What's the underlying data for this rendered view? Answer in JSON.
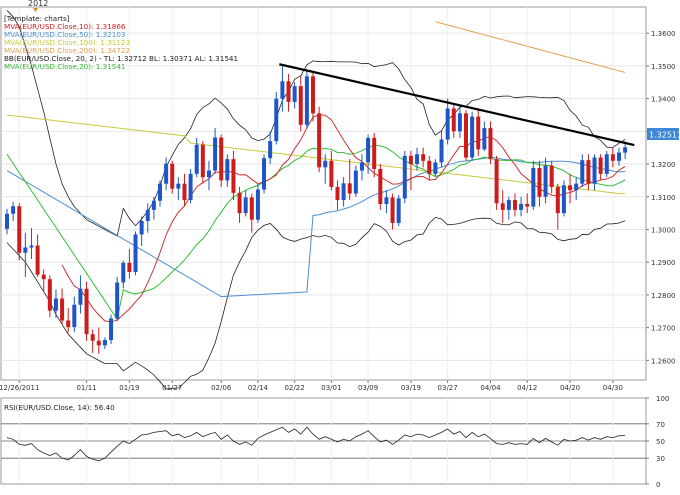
{
  "year_marker": "2012",
  "template_label": "[Template: charts]",
  "chart_data": {
    "type": "candlestick",
    "main_panel": {
      "indicators": [
        {
          "text": "MVA(EUR/USD.Close,10): 1.31866",
          "color": "#cc2020"
        },
        {
          "text": "MVA(EUR/USD.Close,50): 1.32103",
          "color": "#4b8fd1"
        },
        {
          "text": "MVA(EUR/USD.Close,100): 1.31123",
          "color": "#c9c93a"
        },
        {
          "text": "MVA(EUR/USD.Close,200): 1.34722",
          "color": "#e0a050"
        },
        {
          "text": "BB(EUR/USD.Close, 20, 2) -  TL: 1.32712  BL: 1.30371  AL: 1.31541",
          "color": "#222222"
        },
        {
          "text": "MVA(EUR/USD.Close,20): 1.31541",
          "color": "#33bb33"
        }
      ],
      "ylim": [
        1.254,
        1.368
      ],
      "yticks": [
        "1.2600",
        "1.2700",
        "1.2800",
        "1.2900",
        "1.3000",
        "1.3100",
        "1.3200",
        "1.3300",
        "1.3400",
        "1.3500",
        "1.3600"
      ],
      "last_price_label": "1.32511",
      "colors": {
        "up": "#1e56c8",
        "down": "#cc1c1c",
        "ma10": "#cc3333",
        "ma50": "#4b8fd1",
        "ma100": "#c9c93a",
        "ma200": "#e0a050",
        "ma20": "#33bb33",
        "bb": "#222222",
        "trendline": "#000000",
        "price_tag": "#3d88d8"
      },
      "trendline": [
        [
          44.5,
          1.3505
        ],
        [
          102.5,
          1.3258
        ]
      ],
      "ohlc": [
        [
          1.3002,
          1.3063,
          1.2985,
          1.3048
        ],
        [
          1.3048,
          1.3085,
          1.3026,
          1.3071
        ],
        [
          1.3071,
          1.308,
          1.2905,
          1.2929
        ],
        [
          1.2929,
          1.299,
          1.2855,
          1.2945
        ],
        [
          1.2945,
          1.3004,
          1.291,
          1.2951
        ],
        [
          1.2951,
          1.2985,
          1.2855,
          1.2862
        ],
        [
          1.2862,
          1.2878,
          1.281,
          1.2848
        ],
        [
          1.2848,
          1.286,
          1.2732,
          1.2752
        ],
        [
          1.2752,
          1.2817,
          1.273,
          1.2789
        ],
        [
          1.2789,
          1.282,
          1.271,
          1.2722
        ],
        [
          1.2722,
          1.276,
          1.2685,
          1.2702
        ],
        [
          1.2702,
          1.2795,
          1.2686,
          1.277
        ],
        [
          1.277,
          1.286,
          1.2743,
          1.2819
        ],
        [
          1.2819,
          1.284,
          1.266,
          1.268
        ],
        [
          1.268,
          1.2694,
          1.2623,
          1.266
        ],
        [
          1.266,
          1.27,
          1.262,
          1.2646
        ],
        [
          1.2646,
          1.267,
          1.2635,
          1.2662
        ],
        [
          1.2662,
          1.274,
          1.265,
          1.2728
        ],
        [
          1.2728,
          1.2855,
          1.272,
          1.2838
        ],
        [
          1.2838,
          1.2905,
          1.282,
          1.2898
        ],
        [
          1.2898,
          1.294,
          1.285,
          1.287
        ],
        [
          1.287,
          1.2994,
          1.286,
          1.2985
        ],
        [
          1.2985,
          1.304,
          1.295,
          1.3026
        ],
        [
          1.3026,
          1.308,
          1.299,
          1.306
        ],
        [
          1.306,
          1.31,
          1.303,
          1.3088
        ],
        [
          1.3088,
          1.315,
          1.307,
          1.314
        ],
        [
          1.314,
          1.322,
          1.312,
          1.3201
        ],
        [
          1.3201,
          1.321,
          1.311,
          1.3125
        ],
        [
          1.3125,
          1.316,
          1.309,
          1.314
        ],
        [
          1.314,
          1.317,
          1.307,
          1.309
        ],
        [
          1.309,
          1.3185,
          1.308,
          1.317
        ],
        [
          1.317,
          1.328,
          1.316,
          1.3259
        ],
        [
          1.3259,
          1.327,
          1.314,
          1.316
        ],
        [
          1.316,
          1.321,
          1.312,
          1.318
        ],
        [
          1.318,
          1.331,
          1.317,
          1.3281
        ],
        [
          1.3281,
          1.329,
          1.313,
          1.315
        ],
        [
          1.315,
          1.323,
          1.313,
          1.3215
        ],
        [
          1.3215,
          1.324,
          1.309,
          1.3112
        ],
        [
          1.3112,
          1.313,
          1.302,
          1.305
        ],
        [
          1.305,
          1.312,
          1.304,
          1.3098
        ],
        [
          1.3098,
          1.311,
          1.299,
          1.303
        ],
        [
          1.303,
          1.314,
          1.302,
          1.3122
        ],
        [
          1.3122,
          1.323,
          1.311,
          1.3218
        ],
        [
          1.3218,
          1.33,
          1.32,
          1.327
        ],
        [
          1.327,
          1.342,
          1.326,
          1.34
        ],
        [
          1.34,
          1.35,
          1.336,
          1.3453
        ],
        [
          1.3453,
          1.3475,
          1.336,
          1.339
        ],
        [
          1.339,
          1.345,
          1.337,
          1.3438
        ],
        [
          1.3438,
          1.347,
          1.33,
          1.332
        ],
        [
          1.332,
          1.349,
          1.331,
          1.3468
        ],
        [
          1.3468,
          1.348,
          1.333,
          1.3355
        ],
        [
          1.3355,
          1.3375,
          1.3175,
          1.319
        ],
        [
          1.319,
          1.323,
          1.314,
          1.321
        ],
        [
          1.321,
          1.324,
          1.312,
          1.313
        ],
        [
          1.313,
          1.315,
          1.306,
          1.309
        ],
        [
          1.309,
          1.316,
          1.307,
          1.3141
        ],
        [
          1.3141,
          1.3215,
          1.309,
          1.311
        ],
        [
          1.311,
          1.3195,
          1.31,
          1.318
        ],
        [
          1.318,
          1.323,
          1.315,
          1.3205
        ],
        [
          1.3205,
          1.329,
          1.317,
          1.328
        ],
        [
          1.328,
          1.3295,
          1.316,
          1.3185
        ],
        [
          1.3185,
          1.32,
          1.306,
          1.3078
        ],
        [
          1.3078,
          1.312,
          1.305,
          1.3098
        ],
        [
          1.3098,
          1.311,
          1.3,
          1.302
        ],
        [
          1.302,
          1.3105,
          1.301,
          1.3095
        ],
        [
          1.3095,
          1.324,
          1.308,
          1.3225
        ],
        [
          1.3225,
          1.324,
          1.312,
          1.32
        ],
        [
          1.32,
          1.325,
          1.318,
          1.323
        ],
        [
          1.323,
          1.325,
          1.319,
          1.321
        ],
        [
          1.321,
          1.3225,
          1.315,
          1.317
        ],
        [
          1.317,
          1.3215,
          1.316,
          1.3205
        ],
        [
          1.3205,
          1.33,
          1.319,
          1.3275
        ],
        [
          1.3275,
          1.34,
          1.326,
          1.337
        ],
        [
          1.337,
          1.3385,
          1.328,
          1.33
        ],
        [
          1.33,
          1.338,
          1.328,
          1.3355
        ],
        [
          1.3355,
          1.3365,
          1.321,
          1.322
        ],
        [
          1.322,
          1.336,
          1.321,
          1.3345
        ],
        [
          1.3345,
          1.337,
          1.3225,
          1.3245
        ],
        [
          1.3245,
          1.333,
          1.324,
          1.331
        ],
        [
          1.331,
          1.333,
          1.32,
          1.3215
        ],
        [
          1.3215,
          1.3225,
          1.306,
          1.308
        ],
        [
          1.308,
          1.312,
          1.302,
          1.306
        ],
        [
          1.306,
          1.31,
          1.303,
          1.309
        ],
        [
          1.309,
          1.311,
          1.304,
          1.306
        ],
        [
          1.306,
          1.31,
          1.304,
          1.3078
        ],
        [
          1.3078,
          1.311,
          1.305,
          1.307
        ],
        [
          1.307,
          1.321,
          1.306,
          1.3188
        ],
        [
          1.3188,
          1.321,
          1.307,
          1.31
        ],
        [
          1.31,
          1.322,
          1.308,
          1.3195
        ],
        [
          1.3195,
          1.321,
          1.311,
          1.313
        ],
        [
          1.313,
          1.314,
          1.3,
          1.305
        ],
        [
          1.305,
          1.315,
          1.304,
          1.3135
        ],
        [
          1.3135,
          1.317,
          1.308,
          1.312
        ],
        [
          1.312,
          1.316,
          1.309,
          1.314
        ],
        [
          1.314,
          1.323,
          1.313,
          1.3212
        ],
        [
          1.3212,
          1.323,
          1.312,
          1.314
        ],
        [
          1.314,
          1.323,
          1.312,
          1.322
        ],
        [
          1.322,
          1.323,
          1.315,
          1.317
        ],
        [
          1.317,
          1.324,
          1.316,
          1.323
        ],
        [
          1.323,
          1.325,
          1.319,
          1.321
        ],
        [
          1.321,
          1.325,
          1.3195,
          1.3235
        ],
        [
          1.3235,
          1.327,
          1.3215,
          1.3251
        ]
      ]
    },
    "rsi_panel": {
      "title": "RSI(EUR/USD.Close, 14): 56.40",
      "ylim": [
        0,
        100
      ],
      "yticks": [
        "100",
        "70",
        "50",
        "30",
        "0"
      ],
      "levels": [
        70,
        50,
        30
      ],
      "values": [
        54,
        52,
        46,
        45,
        47,
        40,
        36,
        33,
        36,
        30,
        28,
        33,
        40,
        32,
        29,
        27,
        30,
        37,
        44,
        50,
        47,
        52,
        57,
        58,
        60,
        61,
        62,
        56,
        58,
        54,
        56,
        60,
        55,
        58,
        60,
        52,
        57,
        50,
        46,
        49,
        45,
        53,
        57,
        60,
        63,
        66,
        60,
        64,
        58,
        66,
        58,
        52,
        55,
        52,
        49,
        52,
        50,
        55,
        58,
        62,
        55,
        49,
        51,
        46,
        51,
        57,
        55,
        58,
        57,
        54,
        57,
        60,
        64,
        58,
        61,
        54,
        60,
        55,
        58,
        53,
        47,
        46,
        48,
        46,
        47,
        46,
        53,
        48,
        53,
        49,
        45,
        52,
        50,
        51,
        54,
        51,
        54,
        52,
        55,
        54,
        56,
        56.4
      ]
    },
    "x_axis": {
      "labels": [
        {
          "text": "12/26/2011",
          "index": 2
        },
        {
          "text": "01/11",
          "index": 13
        },
        {
          "text": "01/19",
          "index": 20
        },
        {
          "text": "01/27",
          "index": 27
        },
        {
          "text": "02/06",
          "index": 35
        },
        {
          "text": "02/14",
          "index": 41
        },
        {
          "text": "02/22",
          "index": 47
        },
        {
          "text": "03/01",
          "index": 53
        },
        {
          "text": "03/09",
          "index": 59
        },
        {
          "text": "03/19",
          "index": 66
        },
        {
          "text": "03/27",
          "index": 72
        },
        {
          "text": "04/04",
          "index": 79
        },
        {
          "text": "04/12",
          "index": 85
        },
        {
          "text": "04/20",
          "index": 92
        },
        {
          "text": "04/30",
          "index": 99
        }
      ]
    }
  }
}
